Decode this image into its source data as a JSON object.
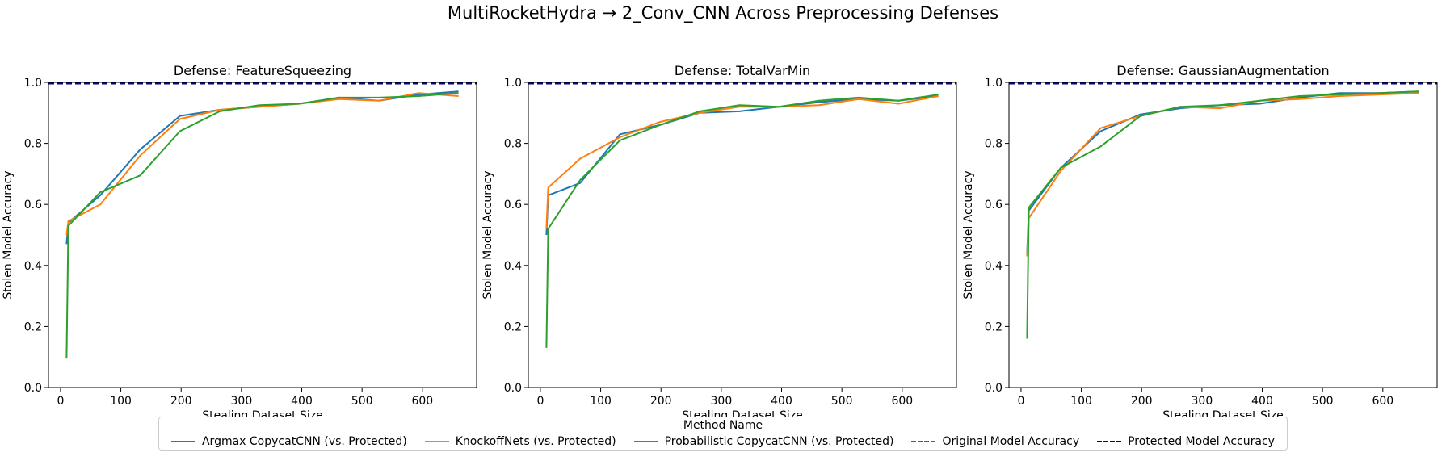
{
  "suptitle": "MultiRocketHydra → 2_Conv_CNN Across Preprocessing Defenses",
  "legend": {
    "title": "Method Name",
    "items": [
      {
        "label": "Argmax CopycatCNN (vs. Protected)",
        "color": "#1f77b4",
        "style": "solid"
      },
      {
        "label": "KnockoffNets (vs. Protected)",
        "color": "#ff7f0e",
        "style": "solid"
      },
      {
        "label": "Probabilistic CopycatCNN (vs. Protected)",
        "color": "#2ca02c",
        "style": "solid"
      },
      {
        "label": "Original Model Accuracy",
        "color": "#d62728",
        "style": "dashed"
      },
      {
        "label": "Protected Model Accuracy",
        "color": "#00008b",
        "style": "dashed"
      }
    ]
  },
  "chart_data": [
    {
      "type": "line",
      "title": "Defense: FeatureSqueezing",
      "xlabel": "Stealing Dataset Size",
      "ylabel": "Stolen Model Accuracy",
      "xlim": [
        -20,
        690
      ],
      "ylim": [
        0,
        1.0
      ],
      "xticks": [
        0,
        100,
        200,
        300,
        400,
        500,
        600
      ],
      "yticks": [
        0.0,
        0.2,
        0.4,
        0.6,
        0.8,
        1.0
      ],
      "x": [
        10,
        13,
        66,
        132,
        198,
        264,
        330,
        396,
        462,
        528,
        594,
        660
      ],
      "series": [
        {
          "name": "Argmax CopycatCNN (vs. Protected)",
          "values": [
            0.47,
            0.54,
            0.63,
            0.78,
            0.89,
            0.91,
            0.92,
            0.93,
            0.95,
            0.94,
            0.96,
            0.97
          ]
        },
        {
          "name": "KnockoffNets (vs. Protected)",
          "values": [
            0.5,
            0.545,
            0.6,
            0.76,
            0.88,
            0.91,
            0.92,
            0.93,
            0.945,
            0.94,
            0.965,
            0.955
          ]
        },
        {
          "name": "Probabilistic CopycatCNN (vs. Protected)",
          "values": [
            0.095,
            0.53,
            0.64,
            0.695,
            0.84,
            0.905,
            0.925,
            0.93,
            0.95,
            0.95,
            0.955,
            0.965
          ]
        }
      ],
      "hlines": [
        {
          "name": "Original Model Accuracy",
          "y": 0.996
        },
        {
          "name": "Protected Model Accuracy",
          "y": 0.996
        }
      ]
    },
    {
      "type": "line",
      "title": "Defense: TotalVarMin",
      "xlabel": "Stealing Dataset Size",
      "ylabel": "Stolen Model Accuracy",
      "xlim": [
        -20,
        690
      ],
      "ylim": [
        0,
        1.0
      ],
      "xticks": [
        0,
        100,
        200,
        300,
        400,
        500,
        600
      ],
      "yticks": [
        0.0,
        0.2,
        0.4,
        0.6,
        0.8,
        1.0
      ],
      "x": [
        10,
        13,
        66,
        132,
        198,
        264,
        330,
        396,
        462,
        528,
        594,
        660
      ],
      "series": [
        {
          "name": "Argmax CopycatCNN (vs. Protected)",
          "values": [
            0.5,
            0.63,
            0.67,
            0.83,
            0.86,
            0.9,
            0.905,
            0.92,
            0.935,
            0.945,
            0.94,
            0.955
          ]
        },
        {
          "name": "KnockoffNets (vs. Protected)",
          "values": [
            0.52,
            0.655,
            0.75,
            0.82,
            0.87,
            0.9,
            0.92,
            0.92,
            0.925,
            0.945,
            0.93,
            0.955
          ]
        },
        {
          "name": "Probabilistic CopycatCNN (vs. Protected)",
          "values": [
            0.13,
            0.52,
            0.68,
            0.81,
            0.86,
            0.905,
            0.925,
            0.92,
            0.94,
            0.95,
            0.94,
            0.96
          ]
        }
      ],
      "hlines": [
        {
          "name": "Original Model Accuracy",
          "y": 0.996
        },
        {
          "name": "Protected Model Accuracy",
          "y": 0.996
        }
      ]
    },
    {
      "type": "line",
      "title": "Defense: GaussianAugmentation",
      "xlabel": "Stealing Dataset Size",
      "ylabel": "Stolen Model Accuracy",
      "xlim": [
        -20,
        690
      ],
      "ylim": [
        0,
        1.0
      ],
      "xticks": [
        0,
        100,
        200,
        300,
        400,
        500,
        600
      ],
      "yticks": [
        0.0,
        0.2,
        0.4,
        0.6,
        0.8,
        1.0
      ],
      "x": [
        10,
        13,
        66,
        132,
        198,
        264,
        330,
        396,
        462,
        528,
        594,
        660
      ],
      "series": [
        {
          "name": "Argmax CopycatCNN (vs. Protected)",
          "values": [
            0.44,
            0.58,
            0.72,
            0.84,
            0.895,
            0.915,
            0.925,
            0.93,
            0.95,
            0.965,
            0.965,
            0.97
          ]
        },
        {
          "name": "KnockoffNets (vs. Protected)",
          "values": [
            0.43,
            0.555,
            0.71,
            0.85,
            0.89,
            0.92,
            0.915,
            0.94,
            0.945,
            0.955,
            0.96,
            0.965
          ]
        },
        {
          "name": "Probabilistic CopycatCNN (vs. Protected)",
          "values": [
            0.16,
            0.59,
            0.72,
            0.79,
            0.89,
            0.92,
            0.925,
            0.94,
            0.955,
            0.96,
            0.965,
            0.97
          ]
        }
      ],
      "hlines": [
        {
          "name": "Original Model Accuracy",
          "y": 0.996
        },
        {
          "name": "Protected Model Accuracy",
          "y": 0.996
        }
      ]
    }
  ]
}
